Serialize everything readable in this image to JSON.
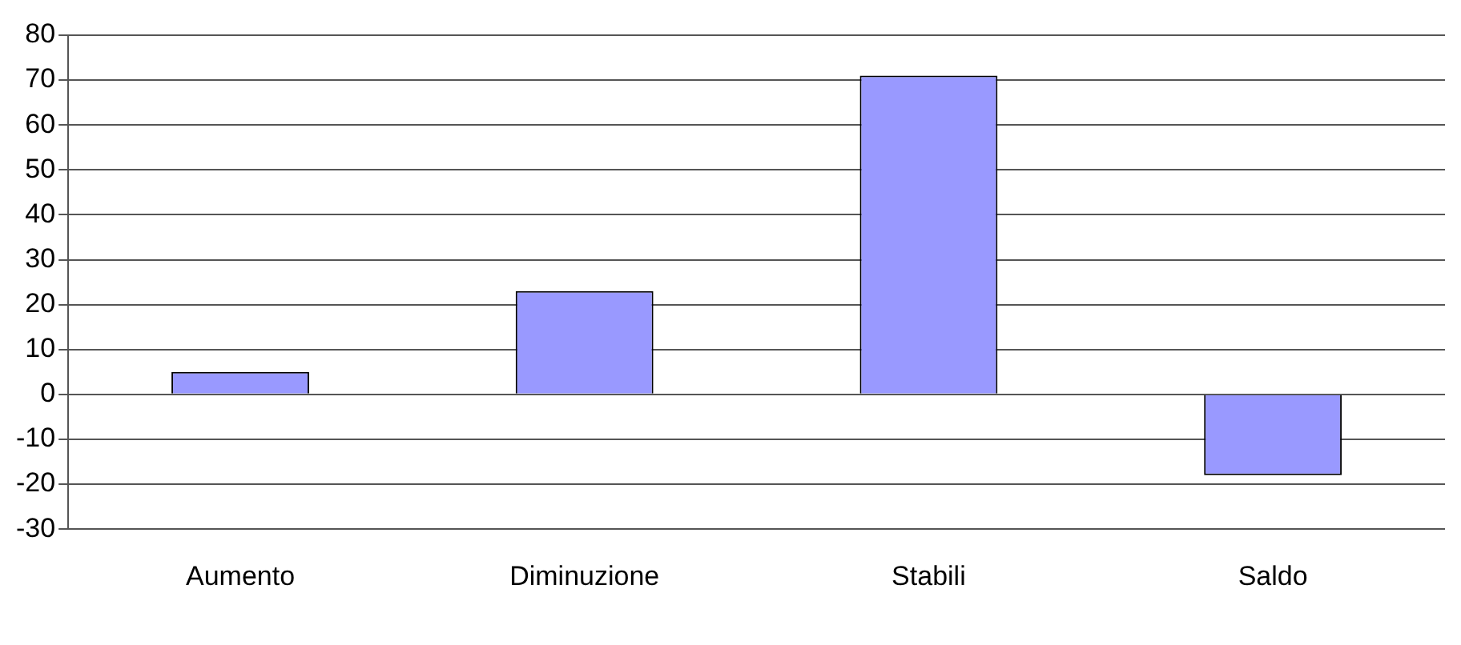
{
  "chart_data": {
    "type": "bar",
    "categories": [
      "Aumento",
      "Diminuzione",
      "Stabili",
      "Saldo"
    ],
    "values": [
      5,
      23,
      71,
      -18
    ],
    "color": "#9999ff",
    "ylim": [
      -30,
      80
    ],
    "yticks": [
      -30,
      -20,
      -10,
      0,
      10,
      20,
      30,
      40,
      50,
      60,
      70,
      80
    ],
    "grid": "y"
  }
}
